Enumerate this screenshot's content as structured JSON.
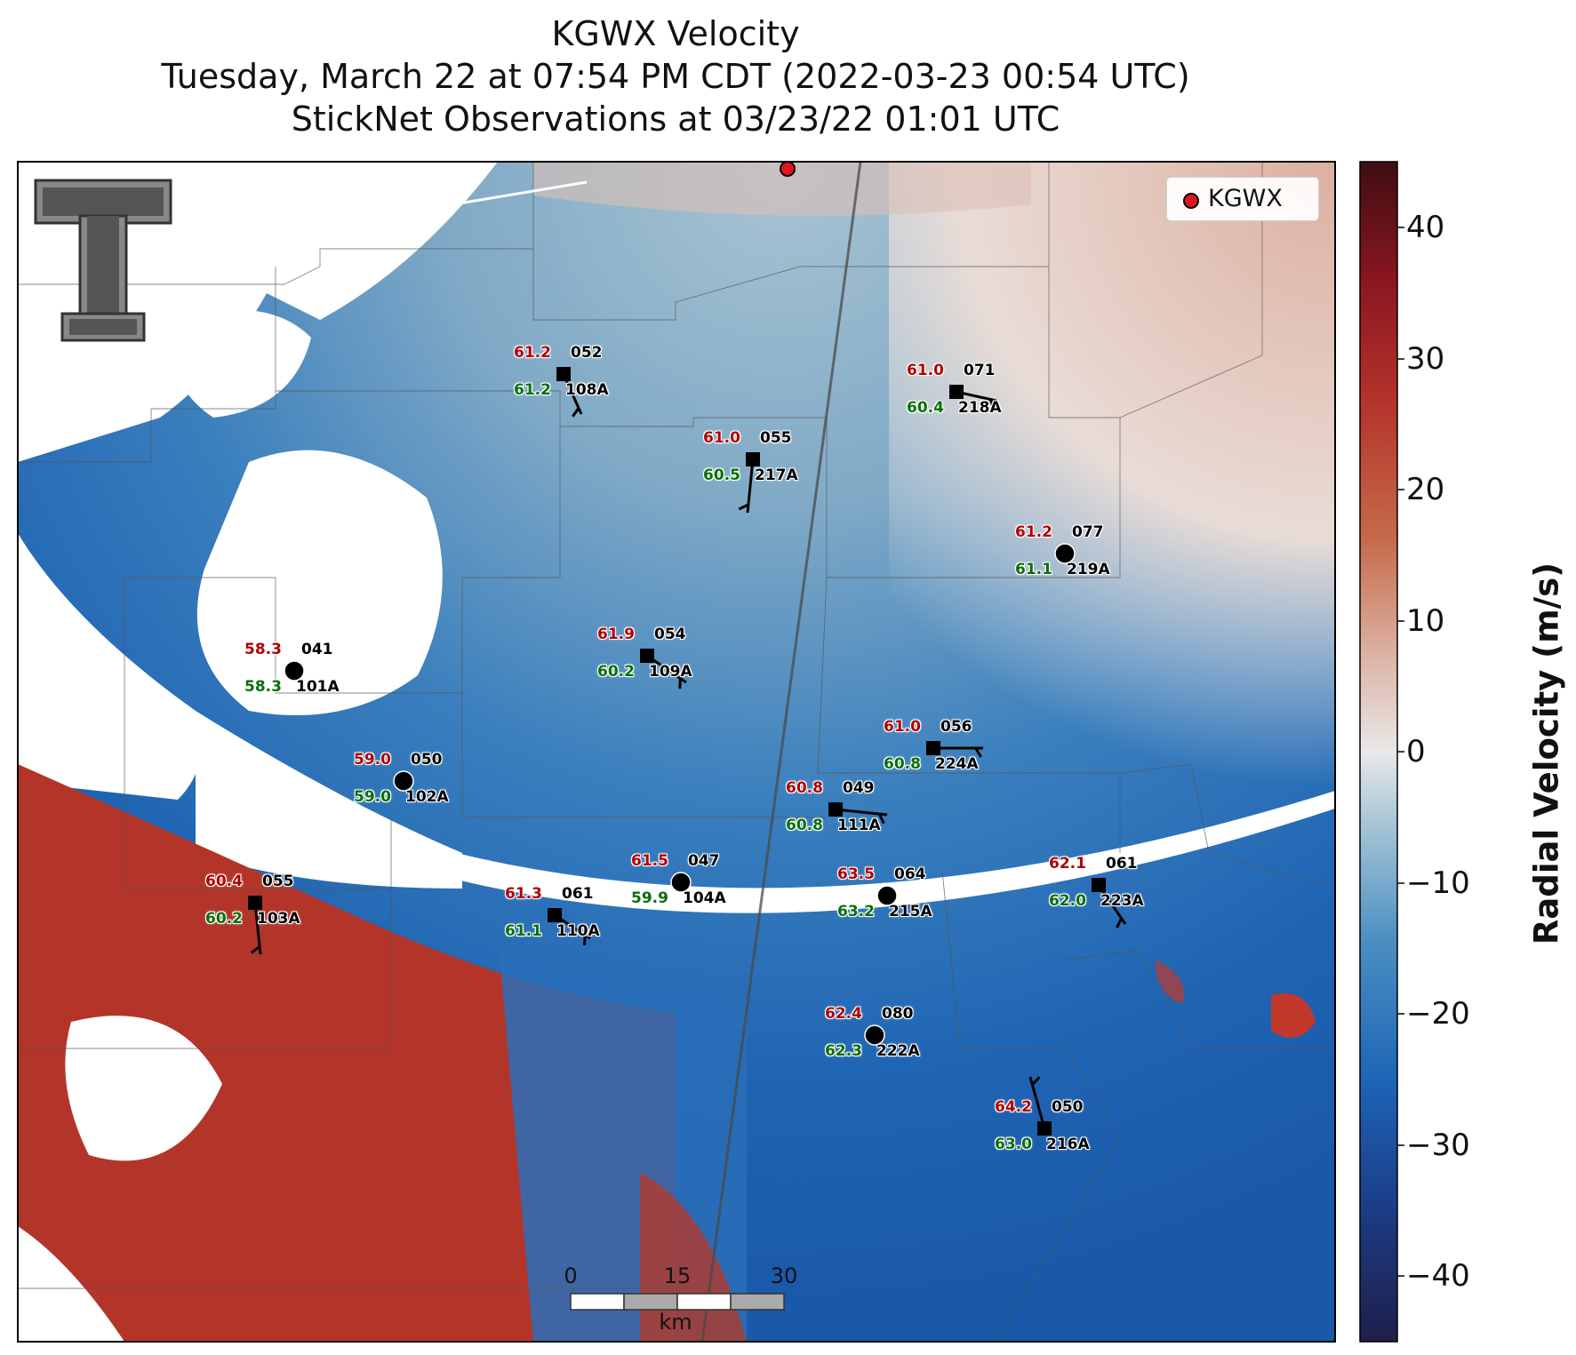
{
  "titles": {
    "line1": "KGWX Velocity",
    "line2": "Tuesday, March 22 at 07:54 PM CDT (2022-03-23 00:54 UTC)",
    "line3": "StickNet Observations at 03/23/22 01:01 UTC"
  },
  "legend": {
    "label": "KGWX",
    "marker_color": "#e0141e"
  },
  "colorbar": {
    "label": "Radial Velocity (m/s)",
    "range": [
      -45,
      45
    ],
    "ticks": [
      "40",
      "30",
      "20",
      "10",
      "0",
      "−10",
      "−20",
      "−30",
      "−40"
    ],
    "colors": [
      "#1f1f4a",
      "#1b3f8a",
      "#1d64b5",
      "#4b8fc2",
      "#a8c6d6",
      "#e8e8e8",
      "#dcb4a4",
      "#c56a4a",
      "#b3322a",
      "#8a1620",
      "#3e0e12"
    ]
  },
  "scalebar": {
    "ticks": [
      "0",
      "15",
      "30"
    ],
    "unit": "km"
  },
  "stations": [
    {
      "id": "108A",
      "temp": "61.2",
      "dew": "61.2",
      "wind": "052"
    },
    {
      "id": "218A",
      "temp": "61.0",
      "dew": "60.4",
      "wind": "071"
    },
    {
      "id": "217A",
      "temp": "61.0",
      "dew": "60.5",
      "wind": "055"
    },
    {
      "id": "219A",
      "temp": "61.2",
      "dew": "61.1",
      "wind": "077"
    },
    {
      "id": "101A",
      "temp": "58.3",
      "dew": "58.3",
      "wind": "041"
    },
    {
      "id": "109A",
      "temp": "61.9",
      "dew": "60.2",
      "wind": "054"
    },
    {
      "id": "224A",
      "temp": "61.0",
      "dew": "60.8",
      "wind": "056"
    },
    {
      "id": "102A",
      "temp": "59.0",
      "dew": "59.0",
      "wind": "050"
    },
    {
      "id": "111A",
      "temp": "60.8",
      "dew": "60.8",
      "wind": "049"
    },
    {
      "id": "103A",
      "temp": "60.4",
      "dew": "60.2",
      "wind": "055"
    },
    {
      "id": "110A",
      "temp": "61.3",
      "dew": "61.1",
      "wind": "061"
    },
    {
      "id": "104A",
      "temp": "61.5",
      "dew": "59.9",
      "wind": "047"
    },
    {
      "id": "215A",
      "temp": "63.5",
      "dew": "63.2",
      "wind": "064"
    },
    {
      "id": "223A",
      "temp": "62.1",
      "dew": "62.0",
      "wind": "061"
    },
    {
      "id": "222A",
      "temp": "62.4",
      "dew": "62.3",
      "wind": "080"
    },
    {
      "id": "216A",
      "temp": "64.2",
      "dew": "63.0",
      "wind": "050"
    }
  ]
}
